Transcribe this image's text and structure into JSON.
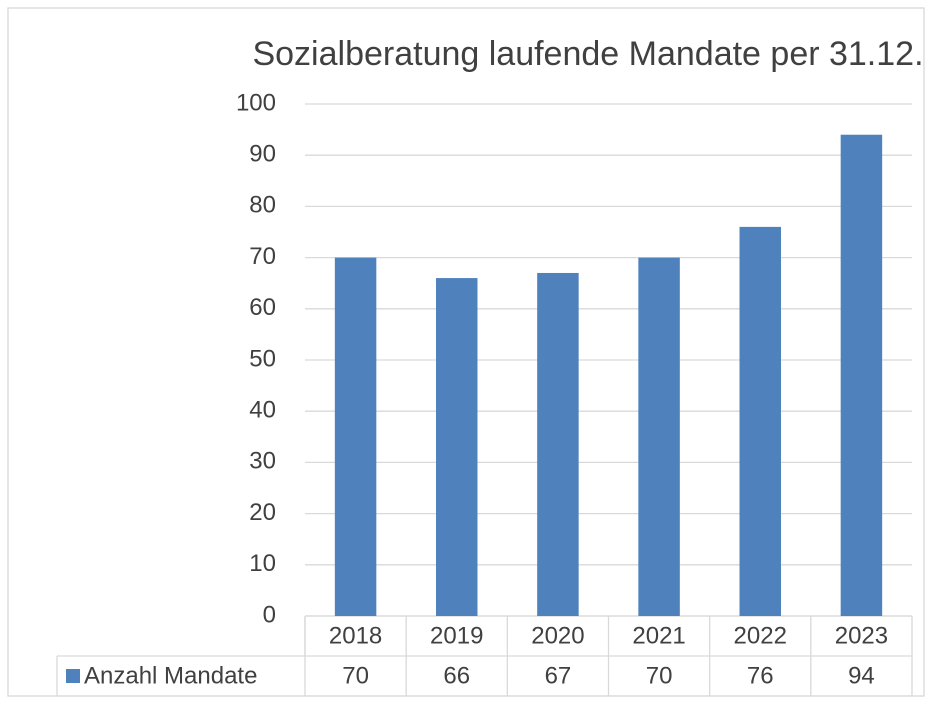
{
  "chart_data": {
    "type": "bar",
    "title": "Sozialberatung laufende Mandate per 31.12.",
    "categories": [
      "2018",
      "2019",
      "2020",
      "2021",
      "2022",
      "2023"
    ],
    "series": [
      {
        "name": "Anzahl Mandate",
        "color": "#4f81bd",
        "values": [
          70,
          66,
          67,
          70,
          76,
          94
        ]
      }
    ],
    "ylim": [
      0,
      100
    ],
    "yticks": [
      0,
      10,
      20,
      30,
      40,
      50,
      60,
      70,
      80,
      90,
      100
    ],
    "grid": true,
    "data_table": true
  }
}
